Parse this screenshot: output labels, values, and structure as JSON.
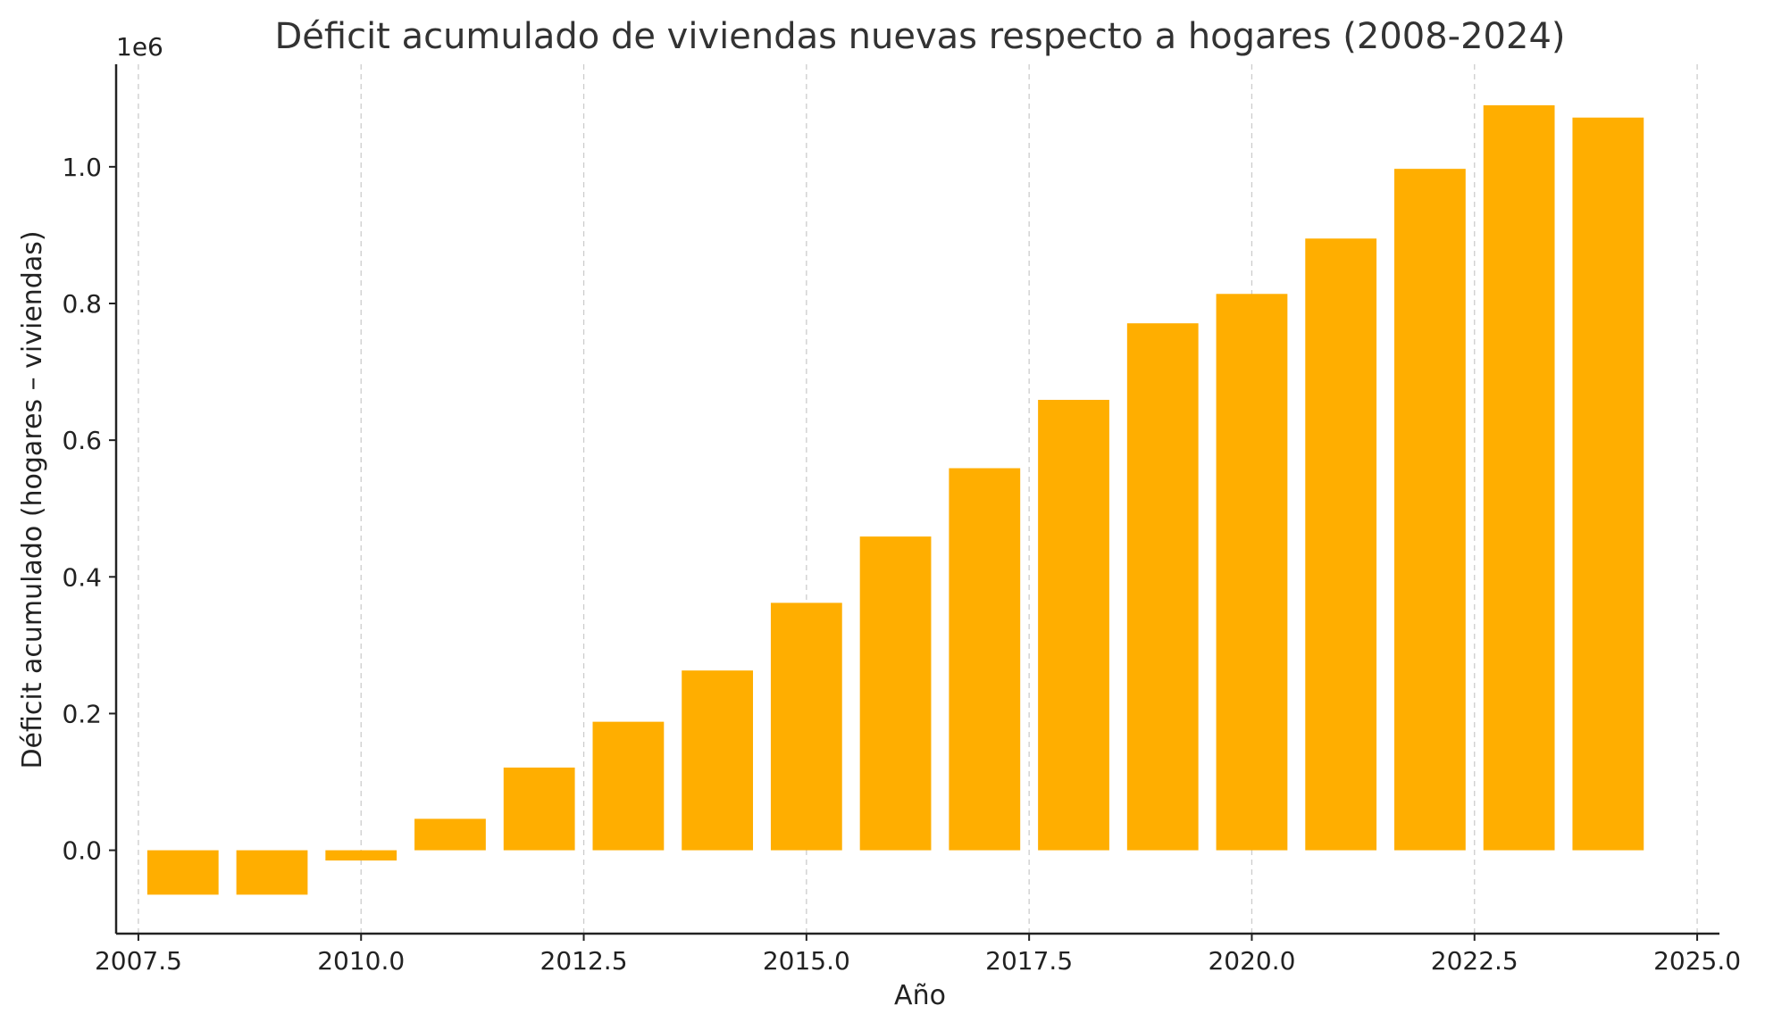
{
  "chart_data": {
    "type": "bar",
    "title": "Déficit acumulado de viviendas nuevas respecto a hogares (2008-2024)",
    "xlabel": "Año",
    "ylabel": "Déficit acumulado (hogares – viviendas)",
    "y_offset_label": "1e6",
    "bar_color": "#FFAE00",
    "x": [
      2008,
      2009,
      2010,
      2011,
      2012,
      2013,
      2014,
      2015,
      2016,
      2017,
      2018,
      2019,
      2020,
      2021,
      2022,
      2023,
      2024
    ],
    "values": [
      -65000,
      -65000,
      -15000,
      46000,
      121000,
      188000,
      263000,
      362000,
      459000,
      559000,
      659000,
      771000,
      814000,
      895000,
      997000,
      1090000,
      1072000
    ],
    "xlim": [
      2007.25,
      2025.25
    ],
    "ylim": [
      -122000,
      1150000
    ],
    "xticks": [
      2007.5,
      2010.0,
      2012.5,
      2015.0,
      2017.5,
      2020.0,
      2022.5,
      2025.0
    ],
    "xtick_labels": [
      "2007.5",
      "2010.0",
      "2012.5",
      "2015.0",
      "2017.5",
      "2020.0",
      "2022.5",
      "2025.0"
    ],
    "yticks": [
      0,
      200000,
      400000,
      600000,
      800000,
      1000000
    ],
    "ytick_labels": [
      "0.0",
      "0.2",
      "0.4",
      "0.6",
      "0.8",
      "1.0"
    ],
    "grid": "vertical dashed",
    "legend": "none"
  }
}
